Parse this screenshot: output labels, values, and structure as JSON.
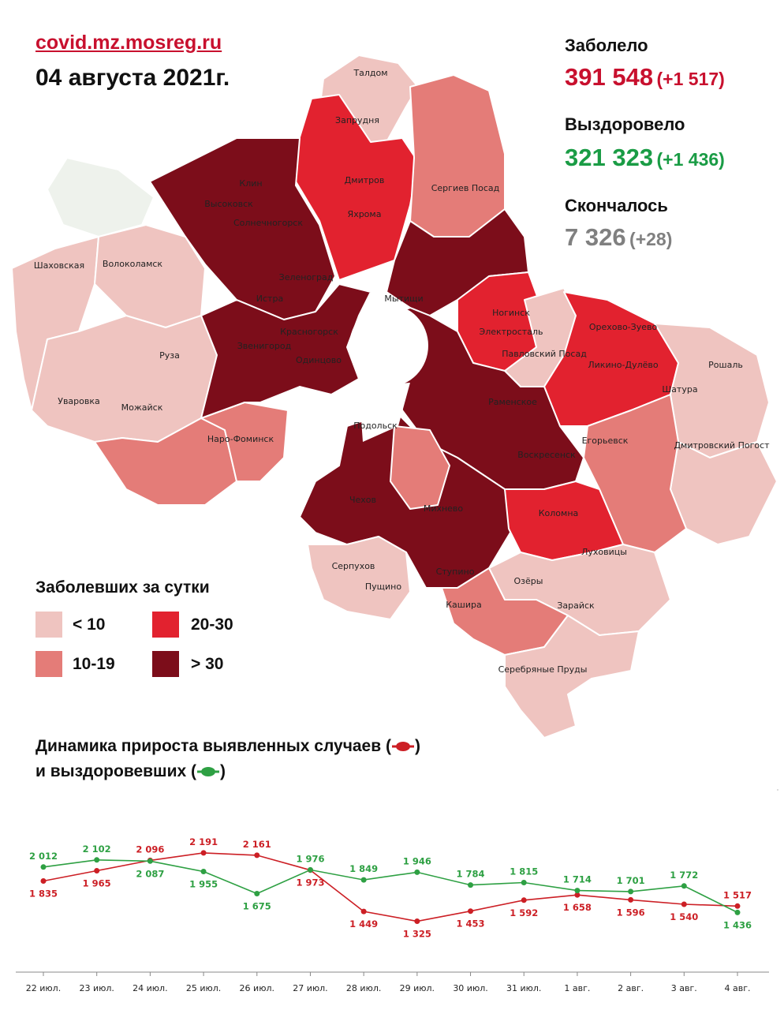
{
  "header": {
    "site": "covid.mz.mosreg.ru",
    "date": "04 августа 2021г."
  },
  "stats": {
    "infected": {
      "label": "Заболело",
      "total": "391 548",
      "delta": "(+1 517)",
      "color": "#c8102e"
    },
    "recovered": {
      "label": "Выздоровело",
      "total": "321 323",
      "delta": "(+1 436)",
      "color": "#1a9c45"
    },
    "deaths": {
      "label": "Скончалось",
      "total": "7 326",
      "delta": "(+28)",
      "color": "#808080"
    }
  },
  "map": {
    "labels": [
      "Талдом",
      "Запрудня",
      "Дмитров",
      "Яхрома",
      "Сергиев Посад",
      "Клин",
      "Высоковск",
      "Солнечногорск",
      "Шаховская",
      "Волоколамск",
      "Зеленоград",
      "Истра",
      "Мытищи",
      "Ногинск",
      "Электросталь",
      "Павловский Посад",
      "Орехово-Зуево",
      "Ликино-Дулёво",
      "Рошаль",
      "Шатура",
      "Красногорск",
      "Звенигород",
      "Одинцово",
      "Руза",
      "Уваровка",
      "Можайск",
      "Наро-Фоминск",
      "Раменское",
      "Подольск",
      "Воскресенск",
      "Егорьевск",
      "Дмитровский Погост",
      "Чехов",
      "Михнево",
      "Коломна",
      "Луховицы",
      "Серпухов",
      "Пущино",
      "Ступино",
      "Озёры",
      "Кашира",
      "Зарайск",
      "Серебряные Пруды"
    ]
  },
  "legend": {
    "title": "Заболевших за сутки",
    "items": [
      {
        "label": "< 10",
        "color": "#efc4c0"
      },
      {
        "label": "20-30",
        "color": "#e2222f"
      },
      {
        "label": "10-19",
        "color": "#e47c78"
      },
      {
        "label": "> 30",
        "color": "#7c0d1a"
      }
    ]
  },
  "chart_title": {
    "line1_prefix": "Динамика прироста выявленных случаев (",
    "line1_suffix": ")",
    "line2_prefix": "и выздоровевших (",
    "line2_suffix": ")"
  },
  "chart_data": {
    "type": "line",
    "categories": [
      "22 июл.",
      "23 июл.",
      "24 июл.",
      "25 июл.",
      "26 июл.",
      "27 июл.",
      "28 июл.",
      "29 июл.",
      "30 июл.",
      "31 июл.",
      "1 авг.",
      "2 авг.",
      "3 авг.",
      "4 авг."
    ],
    "series": [
      {
        "key": "cases",
        "color": "#cc1f25",
        "values": [
          1835,
          1965,
          2096,
          2191,
          2161,
          1973,
          1449,
          1325,
          1453,
          1592,
          1658,
          1596,
          1540,
          1517
        ],
        "value_labels": [
          "1 835",
          "1 965",
          "2 096",
          "2 191",
          "2 161",
          "1 973",
          "1 449",
          "1 325",
          "1 453",
          "1 592",
          "1 658",
          "1 596",
          "1 540",
          "1 517"
        ]
      },
      {
        "key": "recovered",
        "color": "#2ea043",
        "values": [
          2012,
          2102,
          2087,
          1955,
          1675,
          1976,
          1849,
          1946,
          1784,
          1815,
          1714,
          1701,
          1772,
          1436
        ],
        "value_labels": [
          "2 012",
          "2 102",
          "2 087",
          "1 955",
          "1 675",
          "1 976",
          "1 849",
          "1 946",
          "1 784",
          "1 815",
          "1 714",
          "1 701",
          "1 772",
          "1 436"
        ]
      }
    ],
    "ylim": [
      1000,
      2400
    ],
    "grid": false,
    "legend": "none"
  }
}
